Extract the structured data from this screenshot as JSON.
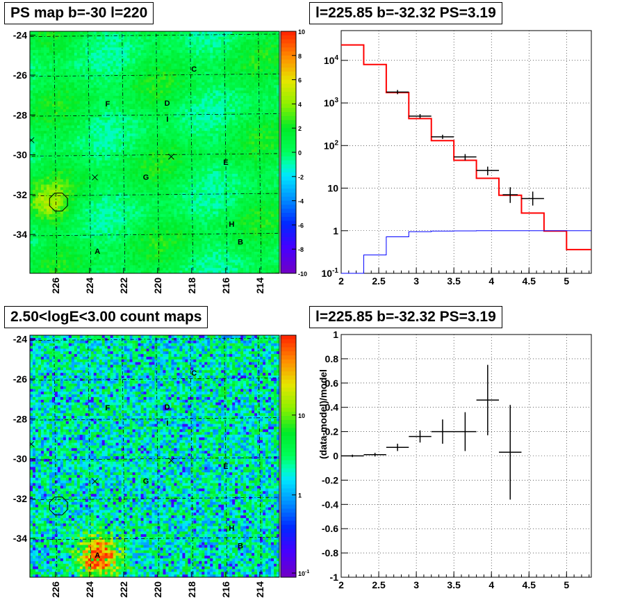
{
  "panels": {
    "ps_map_title": "PS map b=-30 l=220",
    "spectrum_title": "l=225.85 b=-32.32 PS=3.19",
    "count_map_title": "2.50<logE<3.00 count maps",
    "residual_title": "l=225.85 b=-32.32 PS=3.19"
  },
  "chart_data": [
    {
      "id": "ps_map",
      "type": "heatmap",
      "title": "PS map b=-30 l=220",
      "x_ticks": [
        "226",
        "224",
        "222",
        "220",
        "218",
        "216",
        "214"
      ],
      "y_ticks": [
        "-24",
        "-26",
        "-28",
        "-30",
        "-32",
        "-34"
      ],
      "colorbar_ticks": [
        "10",
        "8",
        "6",
        "4",
        "2",
        "0",
        "-2",
        "-4",
        "-6",
        "-8",
        "-10"
      ],
      "zlim": [
        -10,
        10
      ],
      "sources": [
        {
          "label": "A",
          "l": 223.6,
          "b": -34.8
        },
        {
          "label": "B",
          "l": 215.2,
          "b": -34.4
        },
        {
          "label": "C",
          "l": 217.8,
          "b": -25.7
        },
        {
          "label": "D",
          "l": 219.4,
          "b": -27.4
        },
        {
          "label": "E",
          "l": 216.0,
          "b": -30.4
        },
        {
          "label": "F",
          "l": 222.9,
          "b": -27.4
        },
        {
          "label": "G",
          "l": 220.7,
          "b": -31.1
        },
        {
          "label": "H",
          "l": 215.7,
          "b": -33.5
        },
        {
          "label": "I",
          "l": 219.4,
          "b": -28.2
        }
      ]
    },
    {
      "id": "spectrum",
      "type": "line",
      "title": "l=225.85 b=-32.32 PS=3.19",
      "log_y": true,
      "xlim": [
        2,
        5.33
      ],
      "ylim": [
        0.1,
        50000
      ],
      "x_ticks": [
        "2",
        "2.5",
        "3",
        "3.5",
        "4",
        "4.5",
        "5"
      ],
      "y_ticks": [
        "10^-1",
        "1",
        "10",
        "10^2",
        "10^3",
        "10^4"
      ],
      "series": [
        {
          "role": "model",
          "color": "#ff0000",
          "edges": [
            2.0,
            2.3,
            2.6,
            2.9,
            3.2,
            3.5,
            3.8,
            4.1,
            4.4,
            4.7,
            5.0,
            5.33
          ],
          "values": [
            23000,
            8000,
            1750,
            430,
            130,
            45,
            17,
            6.8,
            2.6,
            0.98,
            0.36
          ]
        },
        {
          "role": "background",
          "color": "#0000ff",
          "edges": [
            2.0,
            2.3,
            2.6,
            2.9,
            3.2,
            3.5,
            3.8,
            4.1,
            4.4,
            4.7,
            5.0,
            5.33
          ],
          "values": [
            0.01,
            0.27,
            0.72,
            0.95,
            0.98,
            0.99,
            1.0,
            1.0,
            1.0,
            1.0,
            1.0
          ]
        },
        {
          "role": "data",
          "color": "#000000",
          "points": [
            {
              "x": 2.75,
              "y": 1800,
              "xerr": 0.15
            },
            {
              "x": 3.05,
              "y": 490,
              "xerr": 0.15
            },
            {
              "x": 3.35,
              "y": 160,
              "xerr": 0.15
            },
            {
              "x": 3.65,
              "y": 54,
              "xerr": 0.15,
              "ylo": 45,
              "yhi": 63
            },
            {
              "x": 3.95,
              "y": 26,
              "xerr": 0.15,
              "ylo": 20,
              "yhi": 32
            },
            {
              "x": 4.25,
              "y": 7,
              "xerr": 0.1,
              "ylo": 4.5,
              "yhi": 10.5
            },
            {
              "x": 4.55,
              "y": 5.7,
              "xerr": 0.15,
              "ylo": 3.9,
              "yhi": 8.3
            }
          ]
        }
      ]
    },
    {
      "id": "count_map",
      "type": "heatmap",
      "title": "2.50<logE<3.00 count maps",
      "x_ticks": [
        "226",
        "224",
        "222",
        "220",
        "218",
        "216",
        "214"
      ],
      "y_ticks": [
        "-24",
        "-26",
        "-28",
        "-30",
        "-32",
        "-34"
      ],
      "colorbar_ticks": [
        "10",
        "1",
        "10^-1"
      ],
      "log_z": true,
      "sources": [
        {
          "label": "A",
          "l": 223.6,
          "b": -34.8
        },
        {
          "label": "B",
          "l": 215.2,
          "b": -34.4
        },
        {
          "label": "C",
          "l": 217.8,
          "b": -25.7
        },
        {
          "label": "D",
          "l": 219.4,
          "b": -27.4
        },
        {
          "label": "E",
          "l": 216.0,
          "b": -30.4
        },
        {
          "label": "F",
          "l": 222.9,
          "b": -27.4
        },
        {
          "label": "G",
          "l": 220.7,
          "b": -31.1
        },
        {
          "label": "H",
          "l": 215.7,
          "b": -33.5
        },
        {
          "label": "I",
          "l": 219.4,
          "b": -28.2
        }
      ]
    },
    {
      "id": "residual",
      "type": "scatter",
      "title": "l=225.85 b=-32.32 PS=3.19",
      "ylabel": "(data-model)/model",
      "xlim": [
        2,
        5.33
      ],
      "ylim": [
        -1,
        1
      ],
      "x_ticks": [
        "2",
        "2.5",
        "3",
        "3.5",
        "4",
        "4.5",
        "5"
      ],
      "y_ticks": [
        "-1",
        "-0.8",
        "-0.6",
        "-0.4",
        "-0.2",
        "0",
        "0.2",
        "0.4",
        "0.6",
        "0.8",
        "1"
      ],
      "points": [
        {
          "x": 2.15,
          "y": 0.0,
          "xerr": 0.15,
          "yerr": 0.01
        },
        {
          "x": 2.45,
          "y": 0.01,
          "xerr": 0.15,
          "yerr": 0.015
        },
        {
          "x": 2.75,
          "y": 0.07,
          "xerr": 0.15,
          "yerr": 0.03
        },
        {
          "x": 3.05,
          "y": 0.16,
          "xerr": 0.15,
          "yerr": 0.05
        },
        {
          "x": 3.35,
          "y": 0.2,
          "xerr": 0.15,
          "yerr": 0.1
        },
        {
          "x": 3.65,
          "y": 0.2,
          "xerr": 0.15,
          "yerr": 0.16
        },
        {
          "x": 3.95,
          "y": 0.46,
          "xerr": 0.15,
          "yerr": 0.29
        },
        {
          "x": 4.25,
          "y": 0.03,
          "xerr": 0.15,
          "yerr": 0.39
        }
      ]
    }
  ]
}
